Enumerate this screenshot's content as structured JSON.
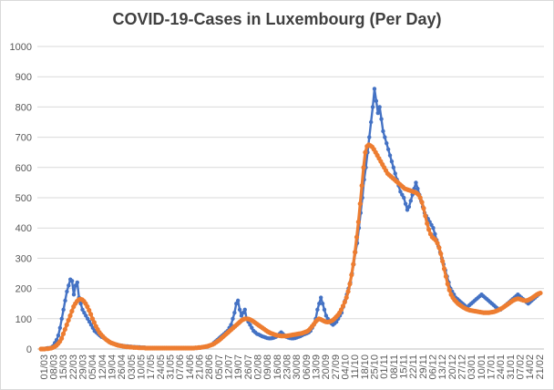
{
  "chart_data": {
    "type": "line",
    "title": "COVID-19-Cases in Luxembourg (Per Day)",
    "xlabel": "",
    "ylabel": "",
    "ylim": [
      0,
      1000
    ],
    "yticks": [
      0,
      100,
      200,
      300,
      400,
      500,
      600,
      700,
      800,
      900,
      1000
    ],
    "grid": true,
    "legend": "none",
    "x_tick_labels": [
      "01/03",
      "08/03",
      "15/03",
      "22/03",
      "29/03",
      "05/04",
      "12/04",
      "19/04",
      "26/04",
      "03/05",
      "10/05",
      "17/05",
      "24/05",
      "31/05",
      "07/06",
      "14/06",
      "21/06",
      "28/06",
      "05/07",
      "12/07",
      "19/07",
      "26/07",
      "02/08",
      "09/08",
      "16/08",
      "23/08",
      "30/08",
      "06/09",
      "13/09",
      "20/09",
      "27/09",
      "04/10",
      "11/10",
      "18/10",
      "25/10",
      "01/11",
      "08/11",
      "15/11",
      "22/11",
      "29/11",
      "06/12",
      "13/12",
      "20/12",
      "27/12",
      "03/01",
      "10/01",
      "17/01",
      "24/01",
      "31/01",
      "07/02",
      "14/02",
      "21/02"
    ],
    "series": [
      {
        "color": "#4472c4",
        "values": [
          0,
          1,
          1,
          2,
          3,
          3,
          5,
          10,
          20,
          30,
          45,
          70,
          100,
          130,
          160,
          190,
          210,
          230,
          225,
          180,
          210,
          220,
          170,
          150,
          130,
          120,
          110,
          100,
          90,
          80,
          70,
          60,
          55,
          50,
          45,
          40,
          38,
          35,
          30,
          25,
          22,
          20,
          18,
          16,
          15,
          13,
          12,
          11,
          10,
          9,
          9,
          8,
          8,
          7,
          7,
          6,
          6,
          6,
          5,
          5,
          5,
          4,
          4,
          4,
          3,
          3,
          3,
          3,
          3,
          3,
          3,
          3,
          3,
          3,
          3,
          3,
          3,
          3,
          3,
          3,
          3,
          3,
          3,
          3,
          3,
          3,
          3,
          3,
          3,
          3,
          3,
          4,
          4,
          5,
          6,
          7,
          8,
          10,
          12,
          15,
          20,
          25,
          30,
          35,
          40,
          45,
          50,
          55,
          60,
          70,
          80,
          100,
          120,
          150,
          160,
          130,
          110,
          120,
          130,
          100,
          90,
          80,
          70,
          60,
          55,
          50,
          48,
          45,
          42,
          40,
          38,
          36,
          35,
          35,
          36,
          38,
          40,
          45,
          50,
          55,
          50,
          45,
          40,
          38,
          36,
          35,
          35,
          36,
          38,
          40,
          42,
          45,
          48,
          50,
          52,
          55,
          60,
          70,
          80,
          100,
          130,
          150,
          170,
          150,
          130,
          110,
          100,
          90,
          85,
          80,
          85,
          90,
          100,
          110,
          120,
          140,
          160,
          180,
          200,
          220,
          250,
          280,
          320,
          350,
          400,
          450,
          500,
          560,
          600,
          650,
          700,
          750,
          800,
          860,
          820,
          780,
          800,
          760,
          720,
          700,
          680,
          660,
          640,
          620,
          600,
          580,
          560,
          540,
          520,
          510,
          500,
          480,
          460,
          470,
          490,
          510,
          530,
          550,
          530,
          510,
          490,
          470,
          450,
          440,
          430,
          420,
          410,
          400,
          380,
          360,
          340,
          320,
          300,
          280,
          260,
          240,
          220,
          200,
          190,
          180,
          170,
          165,
          160,
          155,
          150,
          145,
          140,
          140,
          145,
          150,
          155,
          160,
          165,
          170,
          175,
          180,
          175,
          170,
          165,
          160,
          155,
          150,
          145,
          140,
          135,
          130,
          130,
          135,
          140,
          145,
          150,
          155,
          160,
          165,
          170,
          175,
          180,
          175,
          170,
          165,
          160,
          155,
          150,
          155,
          160,
          165,
          170,
          175,
          180,
          185
        ]
      },
      {
        "color": "#ed7d31",
        "values": [
          0,
          0,
          0,
          1,
          1,
          2,
          3,
          5,
          8,
          12,
          18,
          25,
          35,
          50,
          65,
          80,
          95,
          110,
          125,
          140,
          150,
          158,
          163,
          165,
          163,
          158,
          150,
          140,
          128,
          115,
          100,
          88,
          75,
          65,
          55,
          48,
          42,
          36,
          31,
          27,
          23,
          20,
          18,
          16,
          14,
          12,
          11,
          10,
          9,
          8,
          7,
          7,
          6,
          6,
          5,
          5,
          5,
          4,
          4,
          4,
          4,
          3,
          3,
          3,
          3,
          3,
          3,
          3,
          3,
          3,
          3,
          3,
          3,
          3,
          3,
          3,
          3,
          3,
          3,
          3,
          3,
          3,
          3,
          3,
          3,
          3,
          3,
          3,
          3,
          3,
          4,
          4,
          5,
          5,
          6,
          7,
          8,
          9,
          11,
          13,
          15,
          18,
          22,
          26,
          30,
          35,
          40,
          45,
          50,
          55,
          60,
          65,
          70,
          75,
          80,
          85,
          90,
          95,
          98,
          100,
          100,
          99,
          97,
          94,
          90,
          86,
          82,
          78,
          74,
          70,
          66,
          62,
          58,
          55,
          52,
          50,
          48,
          46,
          45,
          44,
          43,
          43,
          43,
          43,
          44,
          45,
          46,
          47,
          48,
          49,
          50,
          51,
          52,
          54,
          56,
          58,
          62,
          68,
          75,
          82,
          90,
          96,
          100,
          98,
          95,
          92,
          90,
          89,
          90,
          92,
          95,
          100,
          106,
          112,
          120,
          130,
          142,
          155,
          170,
          190,
          215,
          245,
          280,
          320,
          370,
          420,
          480,
          540,
          600,
          650,
          670,
          675,
          672,
          668,
          660,
          650,
          640,
          630,
          620,
          610,
          600,
          590,
          580,
          575,
          570,
          565,
          560,
          555,
          550,
          545,
          540,
          535,
          530,
          528,
          526,
          524,
          522,
          520,
          518,
          515,
          510,
          500,
          485,
          465,
          440,
          415,
          395,
          380,
          370,
          365,
          360,
          350,
          335,
          315,
          290,
          265,
          240,
          215,
          195,
          180,
          170,
          162,
          156,
          150,
          146,
          142,
          138,
          135,
          132,
          130,
          128,
          127,
          126,
          125,
          124,
          123,
          122,
          121,
          120,
          120,
          120,
          120,
          121,
          122,
          123,
          125,
          127,
          130,
          133,
          136,
          140,
          144,
          148,
          152,
          156,
          160,
          163,
          165,
          166,
          165,
          163,
          161,
          160,
          160,
          162,
          165,
          168,
          172,
          176,
          180,
          183,
          185
        ]
      }
    ]
  }
}
